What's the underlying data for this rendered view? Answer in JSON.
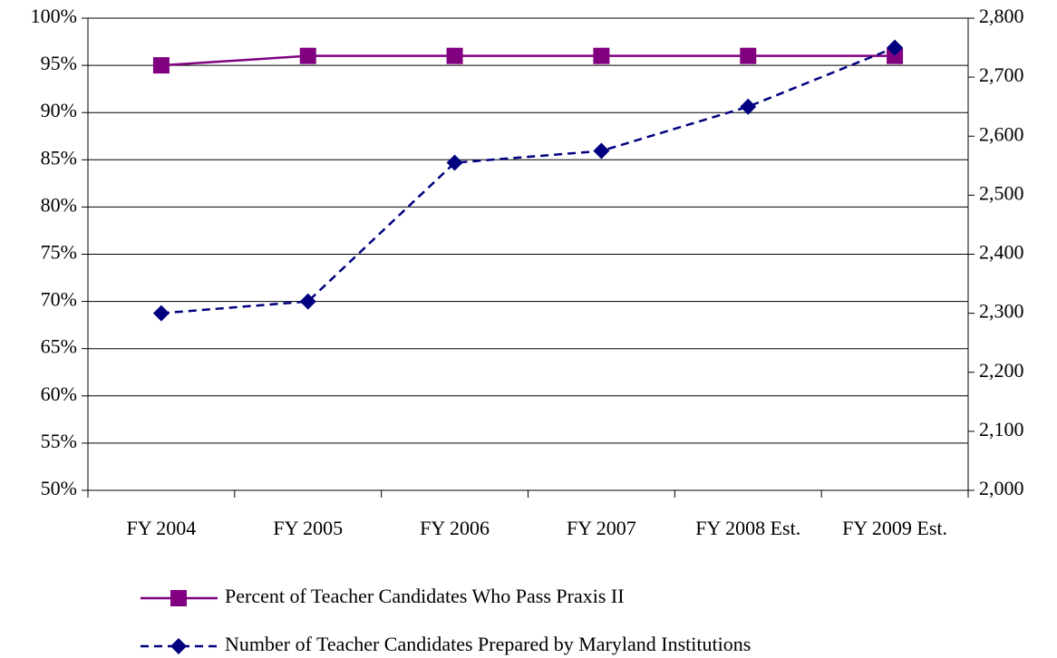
{
  "chart_data": {
    "type": "line",
    "categories": [
      "FY 2004",
      "FY 2005",
      "FY 2006",
      "FY 2007",
      "FY 2008 Est.",
      "FY 2009 Est."
    ],
    "series": [
      {
        "name": "Percent of Teacher Candidates Who Pass Praxis II",
        "color": "#800080",
        "marker": "square",
        "dashed": false,
        "values": [
          95,
          96,
          96,
          96,
          96,
          96
        ]
      },
      {
        "name": "Number of Teacher Candidates Prepared by Maryland Institutions",
        "color": "#000080",
        "marker": "diamond",
        "dashed": true,
        "axis": "y2",
        "values": [
          2300,
          2320,
          2555,
          2575,
          2650,
          2750
        ]
      }
    ],
    "ylim": [
      50,
      100
    ],
    "yticks": [
      {
        "value": 50,
        "label": "50%"
      },
      {
        "value": 55,
        "label": "55%"
      },
      {
        "value": 60,
        "label": "60%"
      },
      {
        "value": 65,
        "label": "65%"
      },
      {
        "value": 70,
        "label": "70%"
      },
      {
        "value": 75,
        "label": "75%"
      },
      {
        "value": 80,
        "label": "80%"
      },
      {
        "value": 85,
        "label": "85%"
      },
      {
        "value": 90,
        "label": "90%"
      },
      {
        "value": 95,
        "label": "95%"
      },
      {
        "value": 100,
        "label": "100%"
      }
    ],
    "y2lim": [
      2000,
      2800
    ],
    "y2ticks": [
      {
        "value": 2000,
        "label": "2,000"
      },
      {
        "value": 2100,
        "label": "2,100"
      },
      {
        "value": 2200,
        "label": "2,200"
      },
      {
        "value": 2300,
        "label": "2,300"
      },
      {
        "value": 2400,
        "label": "2,400"
      },
      {
        "value": 2500,
        "label": "2,500"
      },
      {
        "value": 2600,
        "label": "2,600"
      },
      {
        "value": 2700,
        "label": "2,700"
      },
      {
        "value": 2800,
        "label": "2,800"
      }
    ],
    "grid": true
  }
}
